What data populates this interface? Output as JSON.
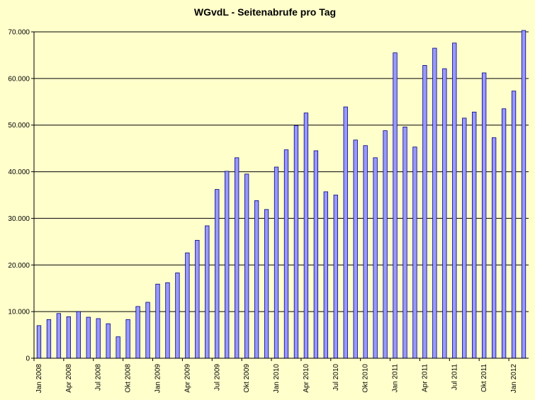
{
  "chart_data": {
    "type": "bar",
    "title": "WGvdL - Seitenabrufe pro Tag",
    "xlabel": "",
    "ylabel": "",
    "ylim": [
      0,
      70000
    ],
    "yticks": [
      0,
      10000,
      20000,
      30000,
      40000,
      50000,
      60000,
      70000
    ],
    "ytick_labels": [
      "0",
      "10.000",
      "20.000",
      "30.000",
      "40.000",
      "50.000",
      "60.000",
      "70.000"
    ],
    "grid": true,
    "categories": [
      "Jan 2008",
      "Feb 2008",
      "Mar 2008",
      "Apr 2008",
      "May 2008",
      "Jun 2008",
      "Jul 2008",
      "Aug 2008",
      "Sep 2008",
      "Okt 2008",
      "Nov 2008",
      "Dec 2008",
      "Jan 2009",
      "Feb 2009",
      "Mar 2009",
      "Apr 2009",
      "May 2009",
      "Jun 2009",
      "Jul 2009",
      "Aug 2009",
      "Sep 2009",
      "Okt 2009",
      "Nov 2009",
      "Dec 2009",
      "Jan 2010",
      "Feb 2010",
      "Mar 2010",
      "Apr 2010",
      "May 2010",
      "Jun 2010",
      "Jul 2010",
      "Aug 2010",
      "Sep 2010",
      "Okt 2010",
      "Nov 2010",
      "Dec 2010",
      "Jan 2011",
      "Feb 2011",
      "Mar 2011",
      "Apr 2011",
      "May 2011",
      "Jun 2011",
      "Jul 2011",
      "Aug 2011",
      "Sep 2011",
      "Okt 2011",
      "Nov 2011",
      "Dec 2011",
      "Jan 2012",
      "Feb 2012"
    ],
    "xtick_labels": [
      {
        "index": 0,
        "label": "Jan 2008"
      },
      {
        "index": 3,
        "label": "Apr 2008"
      },
      {
        "index": 6,
        "label": "Jul 2008"
      },
      {
        "index": 9,
        "label": "Okt 2008"
      },
      {
        "index": 12,
        "label": "Jan 2009"
      },
      {
        "index": 15,
        "label": "Apr 2009"
      },
      {
        "index": 18,
        "label": "Jul 2009"
      },
      {
        "index": 21,
        "label": "Okt 2009"
      },
      {
        "index": 24,
        "label": "Jan 2010"
      },
      {
        "index": 27,
        "label": "Apr 2010"
      },
      {
        "index": 30,
        "label": "Jul 2010"
      },
      {
        "index": 33,
        "label": "Okt 2010"
      },
      {
        "index": 36,
        "label": "Jan 2011"
      },
      {
        "index": 39,
        "label": "Apr 2011"
      },
      {
        "index": 42,
        "label": "Jul 2011"
      },
      {
        "index": 45,
        "label": "Okt 2011"
      },
      {
        "index": 48,
        "label": "Jan 2012"
      }
    ],
    "values": [
      7000,
      8300,
      9600,
      8900,
      10000,
      8800,
      8500,
      7400,
      4600,
      8300,
      11100,
      12000,
      15900,
      16200,
      18300,
      22600,
      25300,
      28400,
      36200,
      40100,
      43000,
      39500,
      33800,
      31900,
      41000,
      44700,
      49900,
      52600,
      44500,
      35700,
      35000,
      53900,
      46800,
      45600,
      43000,
      48800,
      65500,
      49600,
      45300,
      62800,
      66500,
      62100,
      67600,
      51500,
      52800,
      61200,
      47300,
      53500,
      57300,
      70300
    ],
    "colors": {
      "background": "#FFFFCC",
      "bar_fill": "#9999FF",
      "bar_stroke": "#000080",
      "gridline": "#000000"
    }
  }
}
